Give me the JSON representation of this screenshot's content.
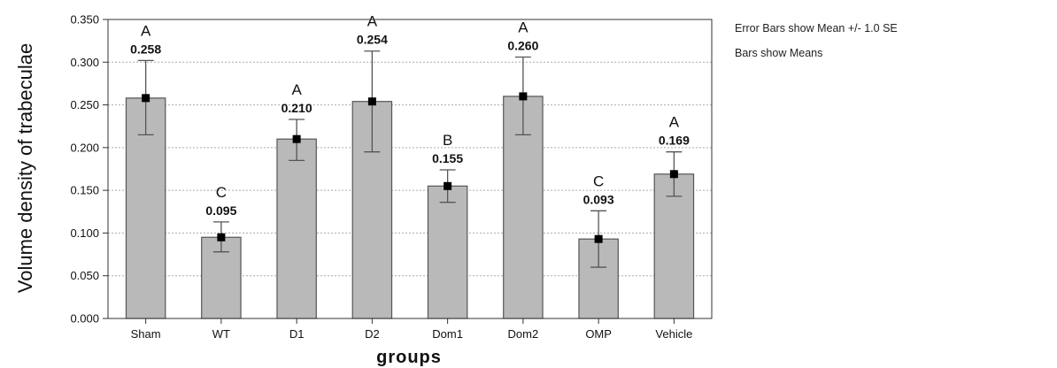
{
  "chart_data": {
    "type": "bar",
    "xlabel": "groups",
    "ylabel": "Volume density of trabeculae",
    "ylim": [
      0,
      0.35
    ],
    "yticks": [
      "0.000",
      "0.050",
      "0.100",
      "0.150",
      "0.200",
      "0.250",
      "0.300",
      "0.350"
    ],
    "ytick_values": [
      0,
      0.05,
      0.1,
      0.15,
      0.2,
      0.25,
      0.3,
      0.35
    ],
    "grid": "horizontal dotted",
    "categories": [
      "Sham",
      "WT",
      "D1",
      "D2",
      "Dom1",
      "Dom2",
      "OMP",
      "Vehicle"
    ],
    "values": [
      0.258,
      0.095,
      0.21,
      0.254,
      0.155,
      0.26,
      0.093,
      0.169
    ],
    "value_labels": [
      "0.258",
      "0.095",
      "0.210",
      "0.254",
      "0.155",
      "0.260",
      "0.093",
      "0.169"
    ],
    "error_low": [
      0.215,
      0.078,
      0.185,
      0.195,
      0.136,
      0.215,
      0.06,
      0.143
    ],
    "error_high": [
      0.302,
      0.113,
      0.233,
      0.313,
      0.174,
      0.306,
      0.126,
      0.195
    ],
    "group_letters": [
      "A",
      "C",
      "A",
      "A",
      "B",
      "A",
      "C",
      "A"
    ],
    "annotations": [
      "Error Bars show Mean +/- 1.0 SE",
      "Bars show Means"
    ],
    "colors": {
      "bar": "#b9b9b9",
      "bar_edge": "#555555",
      "error": "#555555",
      "marker": "#000000"
    }
  }
}
